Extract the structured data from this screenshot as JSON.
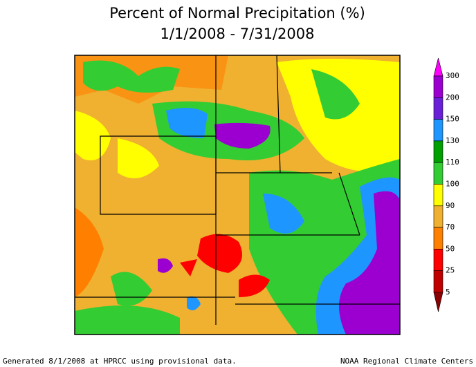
{
  "title": [
    "Percent of Normal Precipitation (%)",
    "1/1/2008 - 7/31/2008"
  ],
  "legend": {
    "breaks": [
      300,
      200,
      150,
      130,
      110,
      100,
      90,
      70,
      50,
      25,
      5
    ],
    "colors": [
      "#ff00ff",
      "#9b00d0",
      "#6a1fd8",
      "#1e96ff",
      "#00a000",
      "#33cc33",
      "#ffff00",
      "#f0b030",
      "#ff8000",
      "#ff0000",
      "#c00000",
      "#8b0000"
    ]
  },
  "footer": {
    "left": "Generated 8/1/2008 at HPRCC using provisional data.",
    "right": "NOAA Regional Climate Centers"
  }
}
